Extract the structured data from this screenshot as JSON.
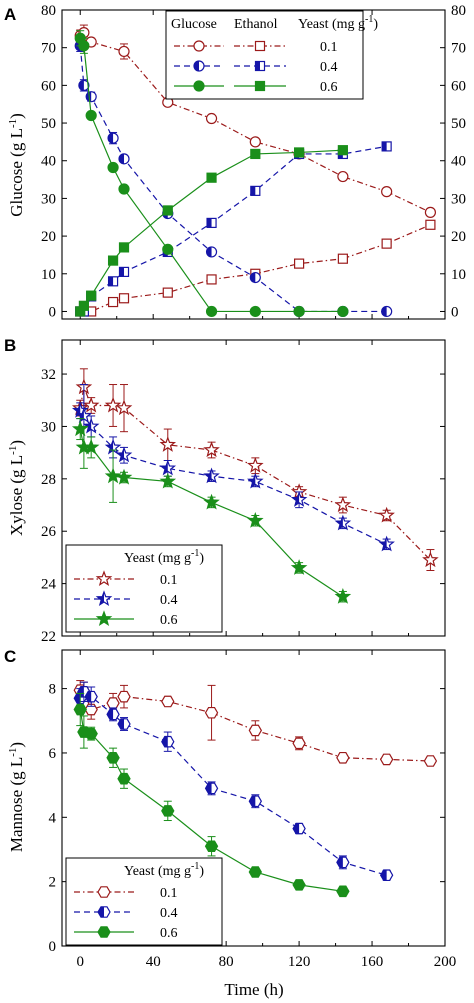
{
  "figure": {
    "x_axis_label": "Time (h)",
    "x_ticks": [
      0,
      40,
      80,
      120,
      160,
      200
    ],
    "x_range": [
      -10,
      200
    ]
  },
  "colors": {
    "y01": "#9b1a1a",
    "y04": "#1515a8",
    "y06": "#1a8f1a"
  },
  "chart_data": [
    {
      "type": "line",
      "panel": "A",
      "ylabel_text": "Glucose (g L",
      "ylabel_exp": "-1",
      "ylabel_close": ")",
      "ylim": [
        -2,
        80
      ],
      "yticks": [
        0,
        10,
        20,
        30,
        40,
        50,
        60,
        70,
        80
      ],
      "right_axis_ticks": [
        0,
        10,
        20,
        30,
        40,
        50,
        60,
        70,
        80
      ],
      "legend": {
        "headers": [
          "Glucose",
          "Ethanol",
          "Yeast (mg g",
          "-1",
          ")"
        ],
        "levels": [
          "0.1",
          "0.4",
          "0.6"
        ]
      },
      "series": [
        {
          "name": "Glucose 0.1",
          "level": "0.1",
          "marker": "circle-open",
          "dash": "dashdot",
          "x": [
            0,
            2,
            6,
            24,
            48,
            72,
            96,
            120,
            144,
            168,
            192
          ],
          "y": [
            73.2,
            74,
            71.5,
            69,
            55.5,
            51.2,
            45,
            41.8,
            35.8,
            31.8,
            26.3
          ],
          "err": [
            1.5,
            2,
            1,
            2,
            0.8,
            0.8,
            0.8,
            0.7,
            0.5,
            0.5,
            0.6
          ]
        },
        {
          "name": "Ethanol 0.1",
          "level": "0.1",
          "marker": "square-open",
          "dash": "dashdot",
          "x": [
            0,
            2,
            6,
            18,
            24,
            48,
            72,
            96,
            120,
            144,
            168,
            192
          ],
          "y": [
            0,
            0,
            0,
            2.5,
            3.5,
            5,
            8.5,
            10,
            12.7,
            14,
            18,
            23
          ],
          "err": [
            0.3,
            0.3,
            0.3,
            0.4,
            0.4,
            0.5,
            0.6,
            0.7,
            0.6,
            0.6,
            0.7,
            0.8
          ]
        },
        {
          "name": "Glucose 0.4",
          "level": "0.4",
          "marker": "circle-half",
          "dash": "dash",
          "x": [
            0,
            2,
            6,
            18,
            24,
            48,
            72,
            96,
            120,
            144,
            168
          ],
          "y": [
            70.5,
            60,
            57,
            46,
            40.5,
            26,
            15.8,
            9,
            0,
            0,
            0
          ],
          "err": [
            1.5,
            1.5,
            1.2,
            1.5,
            0.8,
            0.8,
            0.6,
            0.5,
            0.3,
            0.3,
            0.3
          ]
        },
        {
          "name": "Ethanol 0.4",
          "level": "0.4",
          "marker": "square-half",
          "dash": "dash",
          "x": [
            0,
            2,
            6,
            18,
            24,
            48,
            72,
            96,
            120,
            144,
            168
          ],
          "y": [
            0,
            0,
            4,
            8,
            10.5,
            15.8,
            23.5,
            32,
            41.8,
            41.8,
            43.8
          ],
          "err": [
            0.3,
            0.3,
            0.5,
            0.7,
            0.7,
            0.8,
            0.8,
            1,
            0.8,
            0.8,
            0.8
          ]
        },
        {
          "name": "Glucose 0.6",
          "level": "0.6",
          "marker": "circle-filled",
          "dash": "solid",
          "x": [
            0,
            2,
            6,
            18,
            24,
            48,
            72,
            96,
            120,
            144
          ],
          "y": [
            72.5,
            70.5,
            52,
            38.2,
            32.5,
            16.5,
            0,
            0,
            0,
            0
          ],
          "err": [
            2,
            2,
            0.8,
            0.8,
            0.7,
            0.8,
            0.3,
            0.3,
            0.3,
            0.3
          ]
        },
        {
          "name": "Ethanol 0.6",
          "level": "0.6",
          "marker": "square-filled",
          "dash": "solid",
          "x": [
            0,
            2,
            6,
            18,
            24,
            48,
            72,
            96,
            120,
            144
          ],
          "y": [
            0,
            1.5,
            4.2,
            13.5,
            17,
            26.8,
            35.5,
            41.8,
            42.2,
            42.8
          ],
          "err": [
            0.3,
            0.4,
            0.5,
            0.6,
            0.7,
            1.2,
            0.8,
            0.8,
            0.7,
            0.7
          ]
        }
      ]
    },
    {
      "type": "line",
      "panel": "B",
      "ylabel_text": "Xylose (g L",
      "ylabel_exp": "-1",
      "ylabel_close": ")",
      "ylim": [
        22,
        33.3
      ],
      "yticks": [
        22,
        24,
        26,
        28,
        30,
        32
      ],
      "legend": {
        "headers": [
          "Yeast (mg g",
          "-1",
          ")"
        ],
        "levels": [
          "0.1",
          "0.4",
          "0.6"
        ]
      },
      "series": [
        {
          "name": "Xylose 0.1",
          "level": "0.1",
          "marker": "star-open",
          "dash": "dashdot",
          "x": [
            0,
            2,
            6,
            18,
            24,
            48,
            72,
            96,
            120,
            144,
            168,
            192
          ],
          "y": [
            30.7,
            31.5,
            30.8,
            30.8,
            30.7,
            29.3,
            29.1,
            28.5,
            27.5,
            27,
            26.6,
            24.9
          ],
          "err": [
            0.3,
            0.7,
            0.3,
            0.8,
            0.9,
            0.6,
            0.3,
            0.3,
            0.2,
            0.3,
            0.2,
            0.4
          ]
        },
        {
          "name": "Xylose 0.4",
          "level": "0.4",
          "marker": "star-half",
          "dash": "dash",
          "x": [
            0,
            2,
            6,
            18,
            24,
            48,
            72,
            96,
            120,
            144,
            168
          ],
          "y": [
            30.6,
            30.4,
            30,
            29.2,
            28.9,
            28.4,
            28.1,
            27.9,
            27.2,
            26.3,
            25.5
          ],
          "err": [
            0.3,
            1.2,
            0.4,
            0.4,
            0.3,
            0.3,
            0.2,
            0.2,
            0.3,
            0.2,
            0.2
          ]
        },
        {
          "name": "Xylose 0.6",
          "level": "0.6",
          "marker": "star-filled",
          "dash": "solid",
          "x": [
            0,
            2,
            6,
            18,
            24,
            48,
            72,
            96,
            120,
            144
          ],
          "y": [
            29.9,
            29.2,
            29.2,
            28.1,
            28.05,
            27.9,
            27.1,
            26.4,
            24.6,
            23.5
          ],
          "err": [
            0.4,
            0.8,
            0.4,
            1,
            0.2,
            0.2,
            0.2,
            0.2,
            0.2,
            0.2
          ]
        }
      ]
    },
    {
      "type": "line",
      "panel": "C",
      "ylabel_text": "Mannose (g L",
      "ylabel_exp": "-1",
      "ylabel_close": ")",
      "ylim": [
        0,
        9.2
      ],
      "yticks": [
        0,
        2,
        4,
        6,
        8
      ],
      "legend": {
        "headers": [
          "Yeast (mg g",
          "-1",
          ")"
        ],
        "levels": [
          "0.1",
          "0.4",
          "0.6"
        ]
      },
      "series": [
        {
          "name": "Mannose 0.1",
          "level": "0.1",
          "marker": "hex-open",
          "dash": "dashdot",
          "x": [
            0,
            2,
            6,
            18,
            24,
            48,
            72,
            96,
            120,
            144,
            168,
            192
          ],
          "y": [
            7.95,
            7.9,
            7.35,
            7.55,
            7.75,
            7.6,
            7.25,
            6.7,
            6.3,
            5.85,
            5.8,
            5.75
          ],
          "err": [
            0.3,
            0.3,
            0.3,
            0.3,
            0.35,
            0.1,
            0.85,
            0.3,
            0.2,
            0.1,
            0.1,
            0.1
          ]
        },
        {
          "name": "Mannose 0.4",
          "level": "0.4",
          "marker": "hex-half",
          "dash": "dash",
          "x": [
            0,
            2,
            6,
            18,
            24,
            48,
            72,
            96,
            120,
            144,
            168
          ],
          "y": [
            7.7,
            7.9,
            7.75,
            7.2,
            6.9,
            6.35,
            4.9,
            4.5,
            3.65,
            2.6,
            2.2
          ],
          "err": [
            0.3,
            0.3,
            0.3,
            0.2,
            0.2,
            0.3,
            0.2,
            0.2,
            0.15,
            0.2,
            0.15
          ]
        },
        {
          "name": "Mannose 0.6",
          "level": "0.6",
          "marker": "hex-filled",
          "dash": "solid",
          "x": [
            0,
            2,
            6,
            18,
            24,
            48,
            72,
            96,
            120,
            144
          ],
          "y": [
            7.35,
            6.65,
            6.6,
            5.85,
            5.2,
            4.2,
            3.1,
            2.3,
            1.9,
            1.7
          ],
          "err": [
            0.5,
            0.5,
            0.2,
            0.3,
            0.3,
            0.3,
            0.3,
            0.1,
            0.1,
            0.1
          ]
        }
      ]
    }
  ]
}
